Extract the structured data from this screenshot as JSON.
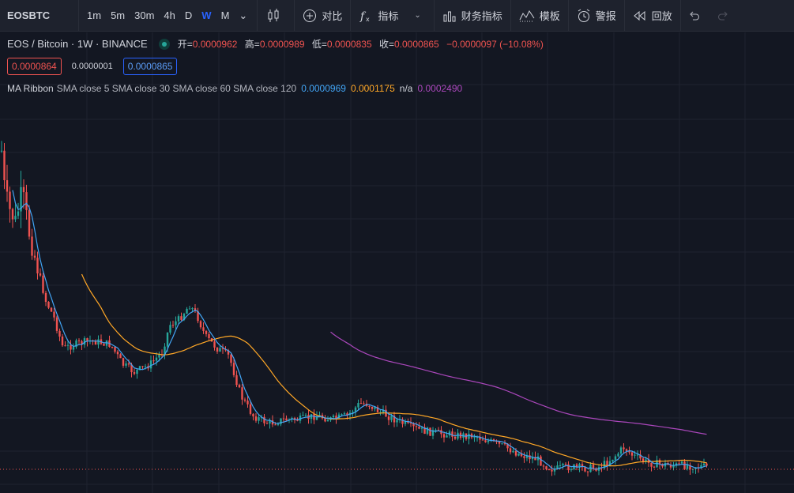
{
  "toolbar": {
    "symbol": "EOSBTC",
    "intervals": [
      "1m",
      "5m",
      "30m",
      "4h",
      "D",
      "W",
      "M"
    ],
    "active_interval": "W",
    "compare_label": "对比",
    "indicators_label": "指标",
    "financials_label": "财务指标",
    "templates_label": "模板",
    "alert_label": "警报",
    "replay_label": "回放"
  },
  "legend": {
    "title": "EOS / Bitcoin · 1W · BINANCE",
    "open_label": "开=",
    "open": "0.0000962",
    "high_label": "高=",
    "high": "0.0000989",
    "low_label": "低=",
    "low": "0.0000835",
    "close_label": "收=",
    "close": "0.0000865",
    "change": "−0.0000097 (−10.08%)"
  },
  "prices": {
    "bid": "0.0000864",
    "spread": "0.0000001",
    "ask": "0.0000865"
  },
  "indicator": {
    "name": "MA Ribbon",
    "params": "SMA close 5 SMA close 30 SMA close 60 SMA close 120",
    "v1": "0.0000969",
    "v2": "0.0001175",
    "v3": "n/a",
    "v4": "0.0002490"
  },
  "colors": {
    "up": "#26a69a",
    "down": "#ef5350",
    "ma5": "#42a5f5",
    "ma30": "#ffa726",
    "ma120": "#ab47bc",
    "background": "#131722"
  },
  "chart_data": {
    "type": "candlestick",
    "series": [
      {
        "name": "SMA close 5",
        "color": "#42a5f5"
      },
      {
        "name": "SMA close 30",
        "color": "#ffa726"
      },
      {
        "name": "SMA close 60"
      },
      {
        "name": "SMA close 120",
        "color": "#ab47bc"
      }
    ],
    "last_close": 8.65e-05,
    "grid": true
  }
}
